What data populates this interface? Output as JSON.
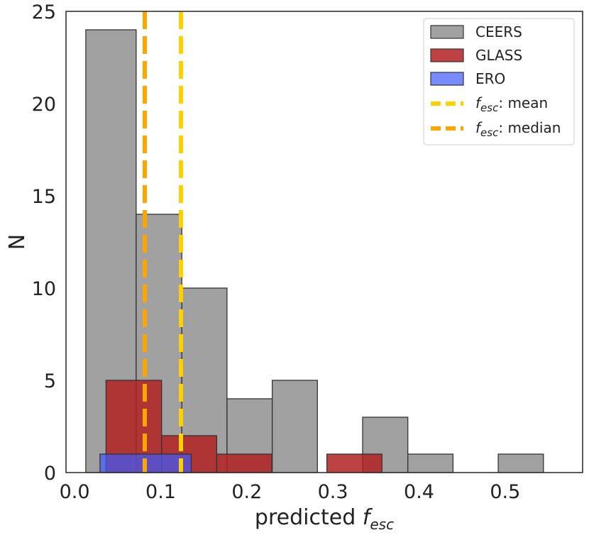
{
  "chart_data": {
    "type": "histogram",
    "xlabel": "predicted",
    "xlabel_symbol": "f",
    "xlabel_subscript": "esc",
    "ylabel": "N",
    "xlim": [
      -0.01,
      0.59
    ],
    "ylim": [
      0,
      25
    ],
    "xticks": [
      0.0,
      0.1,
      0.2,
      0.3,
      0.4,
      0.5
    ],
    "yticks": [
      0,
      5,
      10,
      15,
      20,
      25
    ],
    "legend_position": "top-right",
    "series": [
      {
        "name": "CEERS",
        "color": "#8c8c8c",
        "opacity": 0.82,
        "bins": [
          {
            "x0": 0.013,
            "x1": 0.0715,
            "count": 24
          },
          {
            "x0": 0.0715,
            "x1": 0.1245,
            "count": 14
          },
          {
            "x0": 0.1245,
            "x1": 0.177,
            "count": 10
          },
          {
            "x0": 0.177,
            "x1": 0.2295,
            "count": 4
          },
          {
            "x0": 0.2295,
            "x1": 0.282,
            "count": 5
          },
          {
            "x0": 0.282,
            "x1": 0.3345,
            "count": 0
          },
          {
            "x0": 0.3345,
            "x1": 0.387,
            "count": 3
          },
          {
            "x0": 0.387,
            "x1": 0.4395,
            "count": 1
          },
          {
            "x0": 0.4395,
            "x1": 0.492,
            "count": 0
          },
          {
            "x0": 0.492,
            "x1": 0.5445,
            "count": 1
          }
        ]
      },
      {
        "name": "GLASS",
        "color": "#b22222",
        "opacity": 0.85,
        "bins": [
          {
            "x0": 0.0365,
            "x1": 0.101,
            "count": 5
          },
          {
            "x0": 0.101,
            "x1": 0.165,
            "count": 2
          },
          {
            "x0": 0.165,
            "x1": 0.229,
            "count": 1
          },
          {
            "x0": 0.293,
            "x1": 0.357,
            "count": 1
          }
        ]
      },
      {
        "name": "ERO",
        "color": "#3d5afe",
        "opacity": 0.7,
        "bins": [
          {
            "x0": 0.0295,
            "x1": 0.1355,
            "count": 1
          }
        ]
      }
    ],
    "vlines": [
      {
        "name": "mean",
        "label_symbol": "f",
        "label_subscript": "esc",
        "label_text": ": mean",
        "x": 0.1235,
        "color": "#ffd000"
      },
      {
        "name": "median",
        "label_symbol": "f",
        "label_subscript": "esc",
        "label_text": ": median",
        "x": 0.0815,
        "color": "#ffa500"
      }
    ]
  }
}
